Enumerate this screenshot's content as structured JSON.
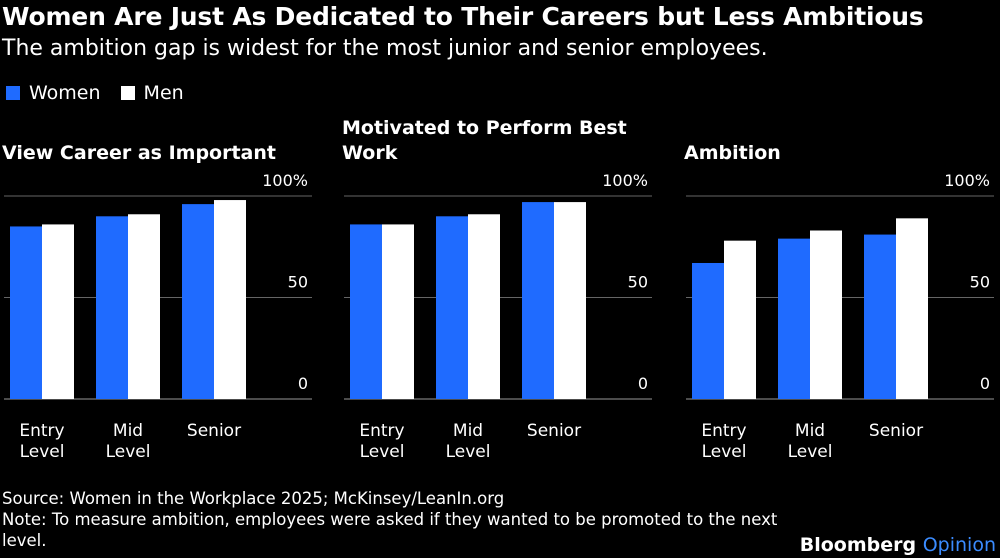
{
  "title": "Women Are Just As Dedicated to Their Careers but Less Ambitious",
  "subtitle": "The ambition gap is widest for the most junior and senior employees.",
  "legend": {
    "women": "Women",
    "men": "Men"
  },
  "colors": {
    "women": "#1f6bff",
    "men": "#ffffff",
    "background": "#000000",
    "grid": "#666666"
  },
  "chart_data": [
    {
      "type": "bar",
      "title": [
        "View Career as Important"
      ],
      "categories": [
        [
          "Entry",
          "Level"
        ],
        [
          "Mid",
          "Level"
        ],
        [
          "Senior"
        ]
      ],
      "series": [
        {
          "name": "Women",
          "values": [
            85,
            90,
            96
          ]
        },
        {
          "name": "Men",
          "values": [
            86,
            91,
            98
          ]
        }
      ],
      "ylim": [
        0,
        100
      ],
      "yticks": [
        0,
        50,
        100
      ],
      "ytick_labels": [
        "0",
        "50",
        "100%"
      ]
    },
    {
      "type": "bar",
      "title": [
        "Motivated to Perform Best",
        "Work"
      ],
      "categories": [
        [
          "Entry",
          "Level"
        ],
        [
          "Mid",
          "Level"
        ],
        [
          "Senior"
        ]
      ],
      "series": [
        {
          "name": "Women",
          "values": [
            86,
            90,
            97
          ]
        },
        {
          "name": "Men",
          "values": [
            86,
            91,
            97
          ]
        }
      ],
      "ylim": [
        0,
        100
      ],
      "yticks": [
        0,
        50,
        100
      ],
      "ytick_labels": [
        "0",
        "50",
        "100%"
      ]
    },
    {
      "type": "bar",
      "title": [
        "Ambition"
      ],
      "categories": [
        [
          "Entry",
          "Level"
        ],
        [
          "Mid",
          "Level"
        ],
        [
          "Senior"
        ]
      ],
      "series": [
        {
          "name": "Women",
          "values": [
            67,
            79,
            81
          ]
        },
        {
          "name": "Men",
          "values": [
            78,
            83,
            89
          ]
        }
      ],
      "ylim": [
        0,
        100
      ],
      "yticks": [
        0,
        50,
        100
      ],
      "ytick_labels": [
        "0",
        "50",
        "100%"
      ]
    }
  ],
  "footer": {
    "source": "Source: Women in the Workplace 2025; McKinsey/LeanIn.org",
    "note": "Note: To measure ambition, employees were asked if they wanted to be promoted to the next level."
  },
  "brand": {
    "name": "Bloomberg",
    "suffix": "Opinion"
  }
}
